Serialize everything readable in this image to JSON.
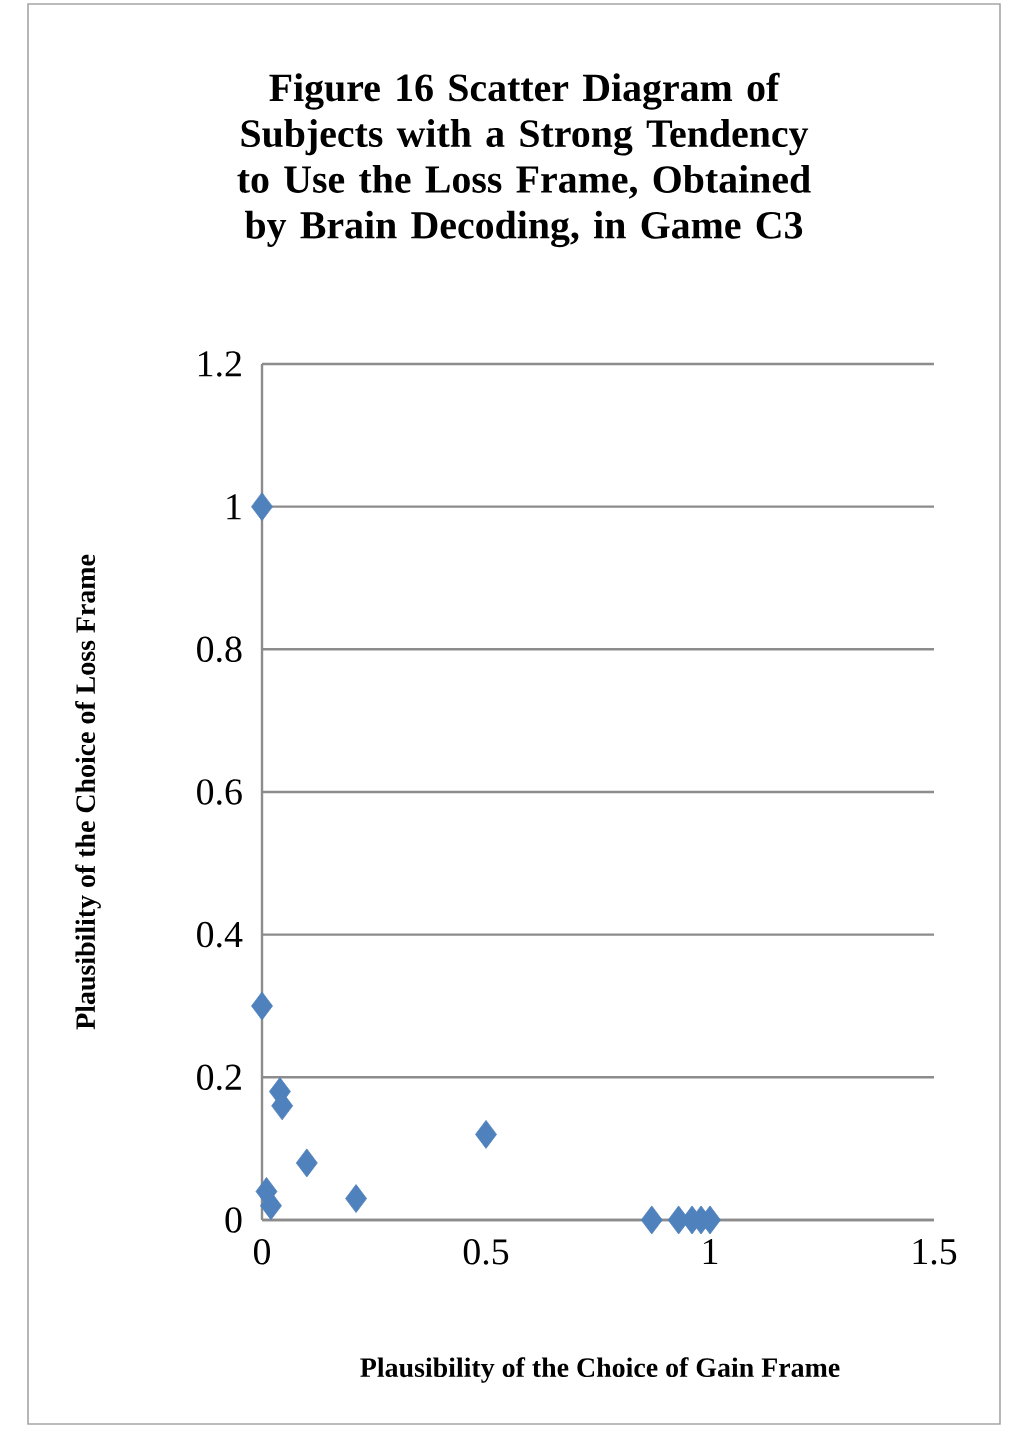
{
  "chart_data": {
    "type": "scatter",
    "title": "Figure 16 Scatter Diagram of Subjects with a Strong Tendency to Use the Loss Frame, Obtained by Brain Decoding, in Game C3",
    "xlabel": "Plausibility of the Choice of Gain Frame",
    "ylabel": "Plausibility of the Choice of Loss Frame",
    "x": [
      0,
      0,
      0.04,
      0.045,
      0.1,
      0.01,
      0.02,
      0.21,
      0.5,
      0.87,
      0.93,
      0.96,
      0.98,
      1.0
    ],
    "values": [
      1,
      0.3,
      0.18,
      0.16,
      0.08,
      0.04,
      0.02,
      0.03,
      0.12,
      0,
      0,
      0,
      0,
      0
    ],
    "color": "#4f81bd",
    "marker": "diamond",
    "xlim": [
      0,
      1.5
    ],
    "ylim": [
      0,
      1.2
    ],
    "xticks": [
      0,
      0.5,
      1,
      1.5
    ],
    "yticks": [
      0,
      0.2,
      0.4,
      0.6,
      0.8,
      1,
      1.2
    ],
    "grid": "y"
  }
}
